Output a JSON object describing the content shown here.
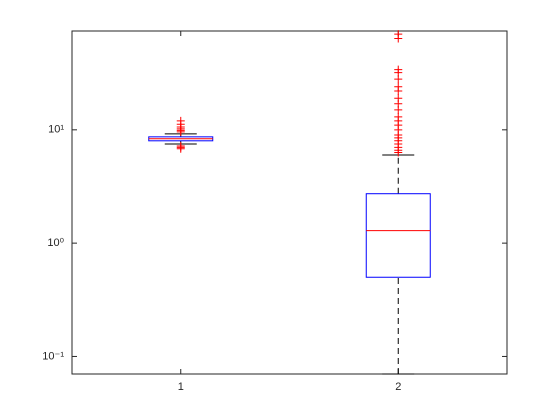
{
  "chart_data": {
    "type": "boxplot",
    "categories": [
      "1",
      "2"
    ],
    "xlim": [
      0.5,
      2.5
    ],
    "ylim": [
      0.07,
      74.5
    ],
    "log_y": true,
    "yticks": [
      {
        "value": 0.1,
        "label": "10⁻¹"
      },
      {
        "value": 1,
        "label": "10⁰"
      },
      {
        "value": 10,
        "label": "10¹"
      }
    ],
    "box_color": "#0000ff",
    "median_color": "#ff0000",
    "whisker_color": "#000000",
    "outlier_color": "#ff0000",
    "boxes": [
      {
        "whisker_low": 7.5,
        "q1": 8.0,
        "median": 8.34,
        "q3": 8.67,
        "whisker_high": 9.2,
        "outliers": [
          6.8,
          7.0,
          7.2,
          9.6,
          9.9,
          10.2,
          10.6,
          11.2,
          12.0
        ]
      },
      {
        "whisker_low": 0.07,
        "q1": 0.5,
        "median": 1.29,
        "q3": 2.73,
        "whisker_high": 6.0,
        "outliers": [
          6.3,
          6.6,
          7.0,
          7.5,
          8.0,
          8.5,
          9.0,
          10.0,
          11.0,
          12.0,
          13.0,
          15.0,
          17.0,
          19.0,
          22.0,
          24.0,
          28.0,
          32.0,
          34.0,
          64.0,
          70.0
        ]
      }
    ]
  }
}
